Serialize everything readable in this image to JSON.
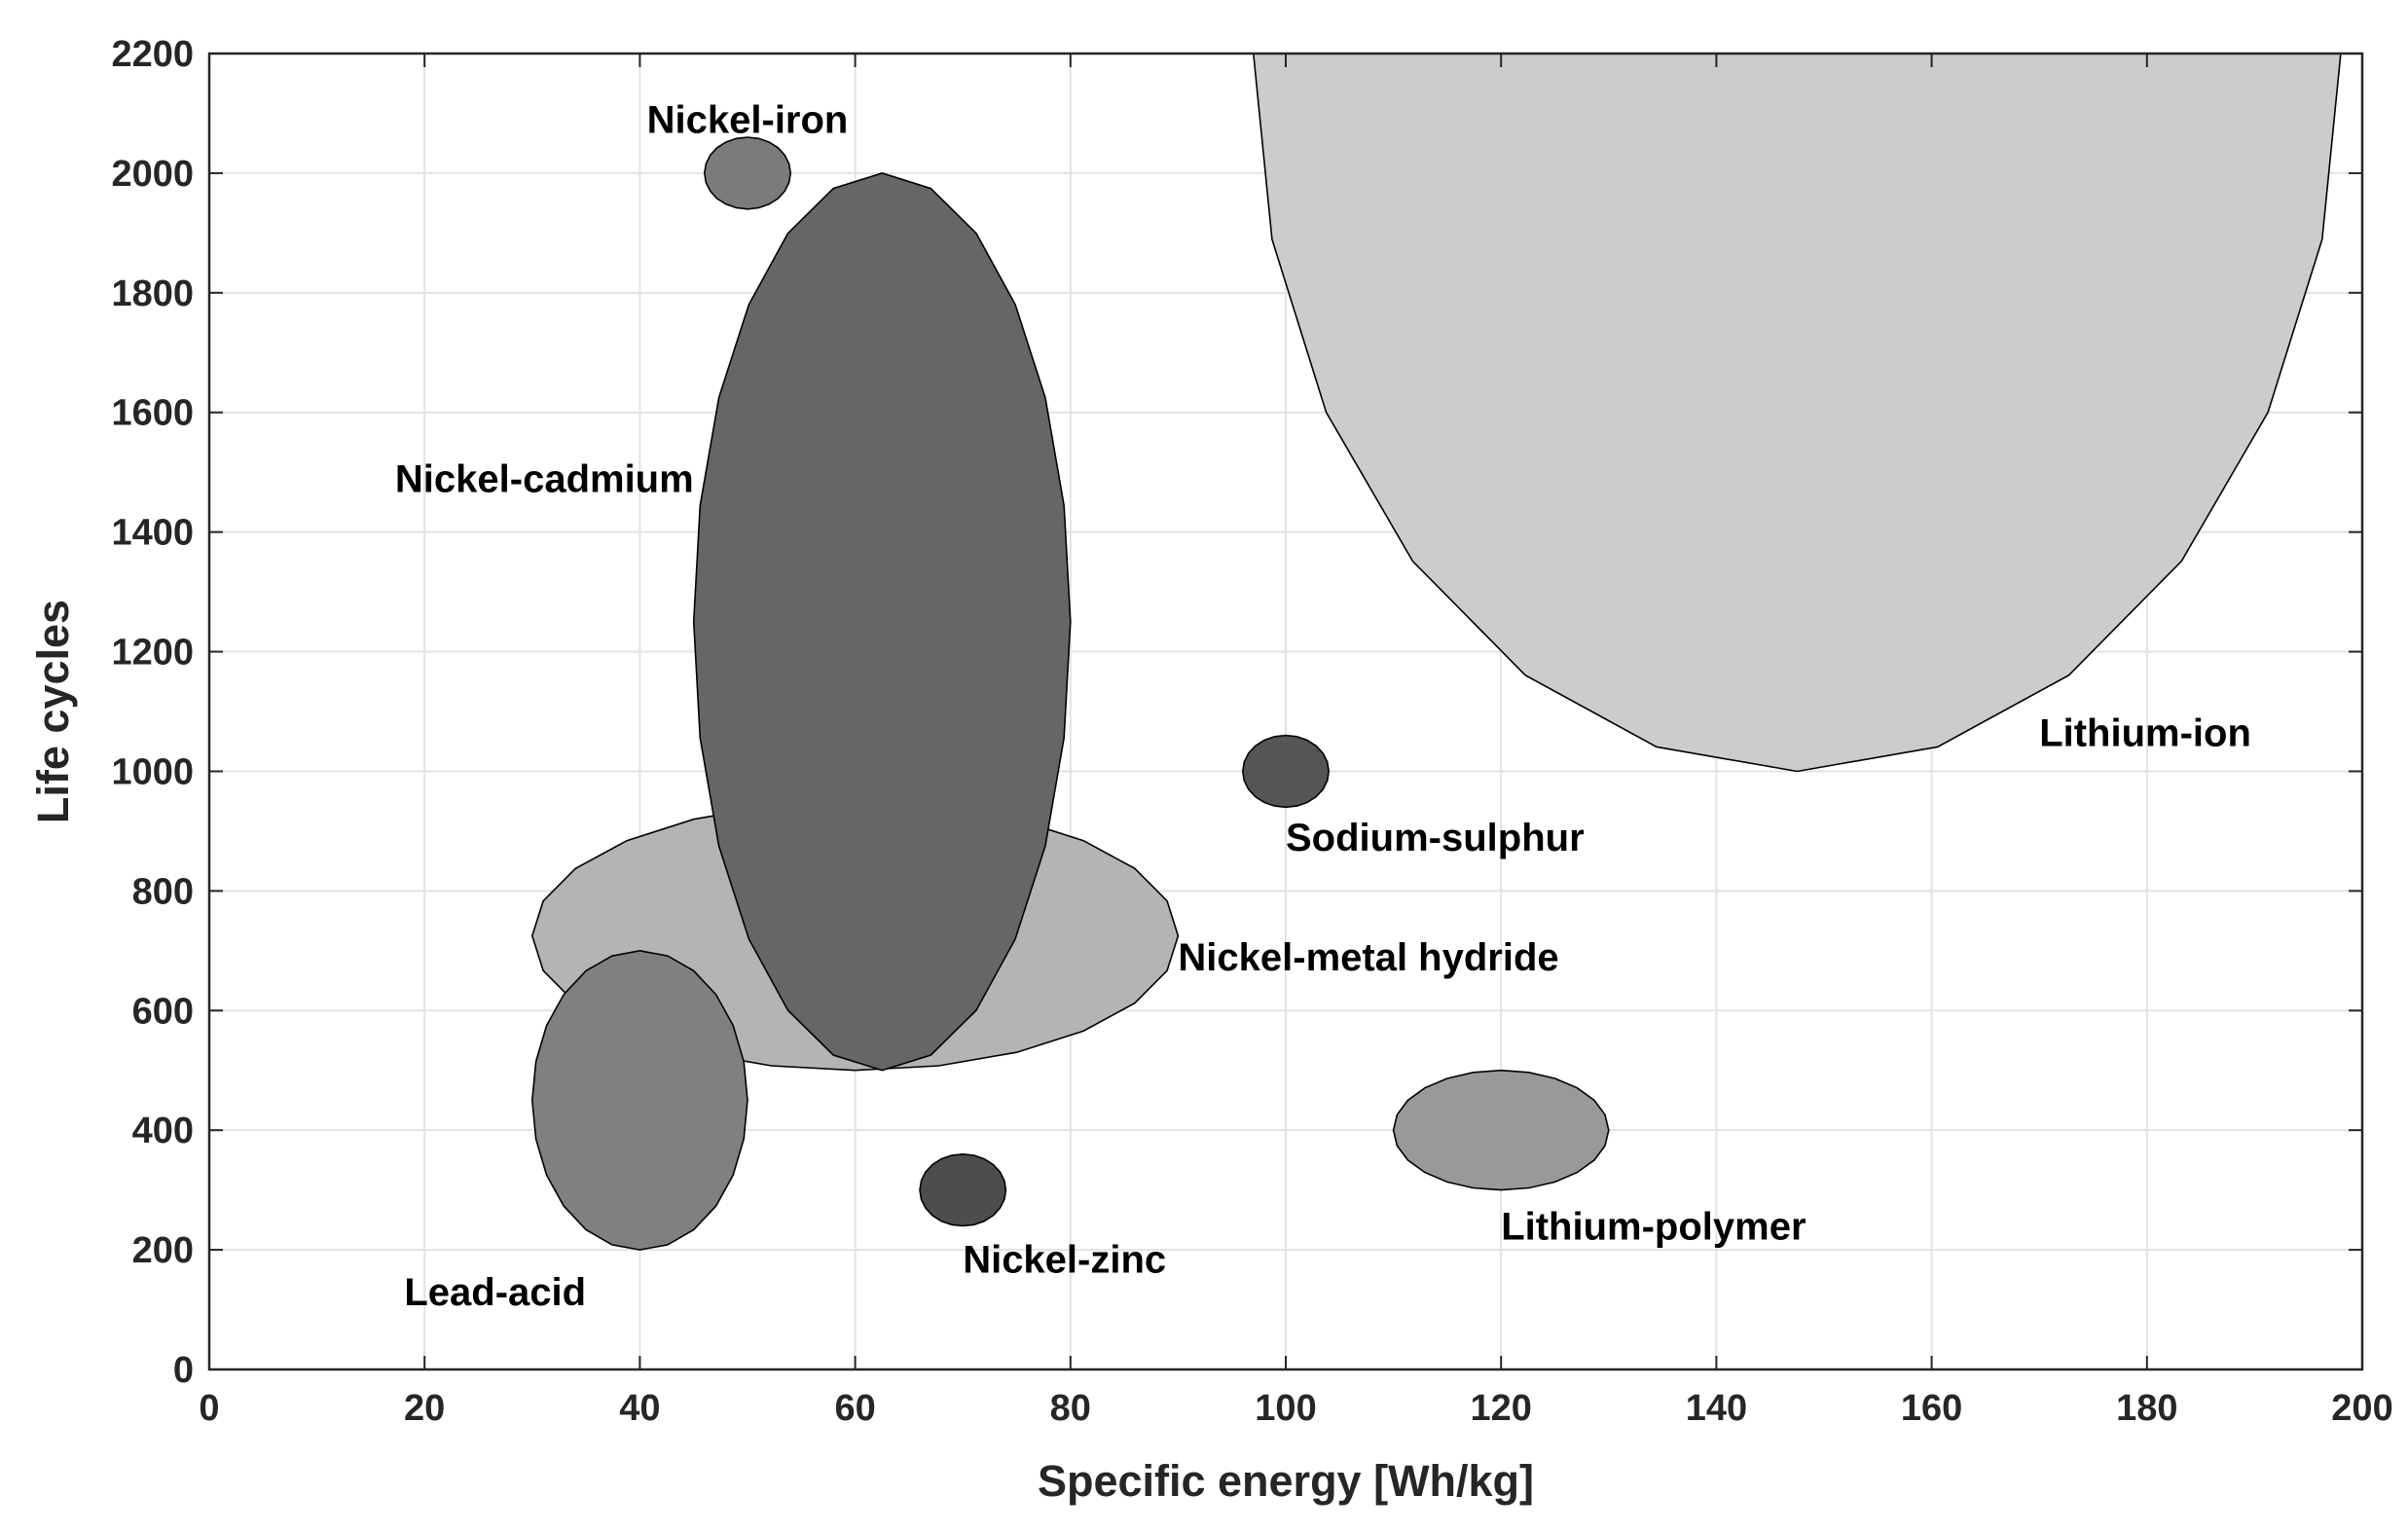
{
  "chart_data": {
    "type": "scatter",
    "title": "",
    "xlabel": "Specific energy [Wh/kg]",
    "ylabel": "Life cycles",
    "xlim": [
      0,
      200
    ],
    "ylim": [
      0,
      2200
    ],
    "xticks": [
      0,
      20,
      40,
      60,
      80,
      100,
      120,
      140,
      160,
      180,
      200
    ],
    "yticks": [
      0,
      200,
      400,
      600,
      800,
      1000,
      1200,
      1400,
      1600,
      1800,
      2000,
      2200
    ],
    "grid": true,
    "series": [
      {
        "name": "Lithium-ion",
        "shape": "ellipse",
        "center": [
          147.5,
          2200
        ],
        "radii": [
          50.5,
          1200
        ],
        "color": "#cccccc",
        "label_at": [
          170,
          1065
        ],
        "label_align": "start"
      },
      {
        "name": "Nickel-metal hydride",
        "shape": "ellipse",
        "center": [
          60,
          725
        ],
        "radii": [
          30,
          225
        ],
        "color": "#b4b4b4",
        "label_at": [
          90,
          690
        ],
        "label_align": "start"
      },
      {
        "name": "Nickel-cadmium",
        "shape": "ellipse",
        "center": [
          62.5,
          1250
        ],
        "radii": [
          17.5,
          750
        ],
        "color": "#666666",
        "label_at": [
          45,
          1490
        ],
        "label_align": "end"
      },
      {
        "name": "Lead-acid",
        "shape": "ellipse",
        "center": [
          40,
          450
        ],
        "radii": [
          10,
          250
        ],
        "color": "#808080",
        "label_at": [
          35,
          130
        ],
        "label_align": "end"
      },
      {
        "name": "Nickel-iron",
        "shape": "ellipse",
        "center": [
          50,
          2000
        ],
        "radii": [
          4,
          60
        ],
        "color": "#7b7b7b",
        "label_at": [
          50,
          2090
        ],
        "label_align": "middle"
      },
      {
        "name": "Sodium-sulphur",
        "shape": "ellipse",
        "center": [
          100,
          1000
        ],
        "radii": [
          4,
          60
        ],
        "color": "#555555",
        "label_at": [
          100,
          890
        ],
        "label_align": "start"
      },
      {
        "name": "Nickel-zinc",
        "shape": "ellipse",
        "center": [
          70,
          300
        ],
        "radii": [
          4,
          60
        ],
        "color": "#4d4d4d",
        "label_at": [
          70,
          185
        ],
        "label_align": "start"
      },
      {
        "name": "Lithium-polymer",
        "shape": "ellipse",
        "center": [
          120,
          400
        ],
        "radii": [
          10,
          100
        ],
        "color": "#999999",
        "label_at": [
          120,
          240
        ],
        "label_align": "start"
      }
    ]
  }
}
